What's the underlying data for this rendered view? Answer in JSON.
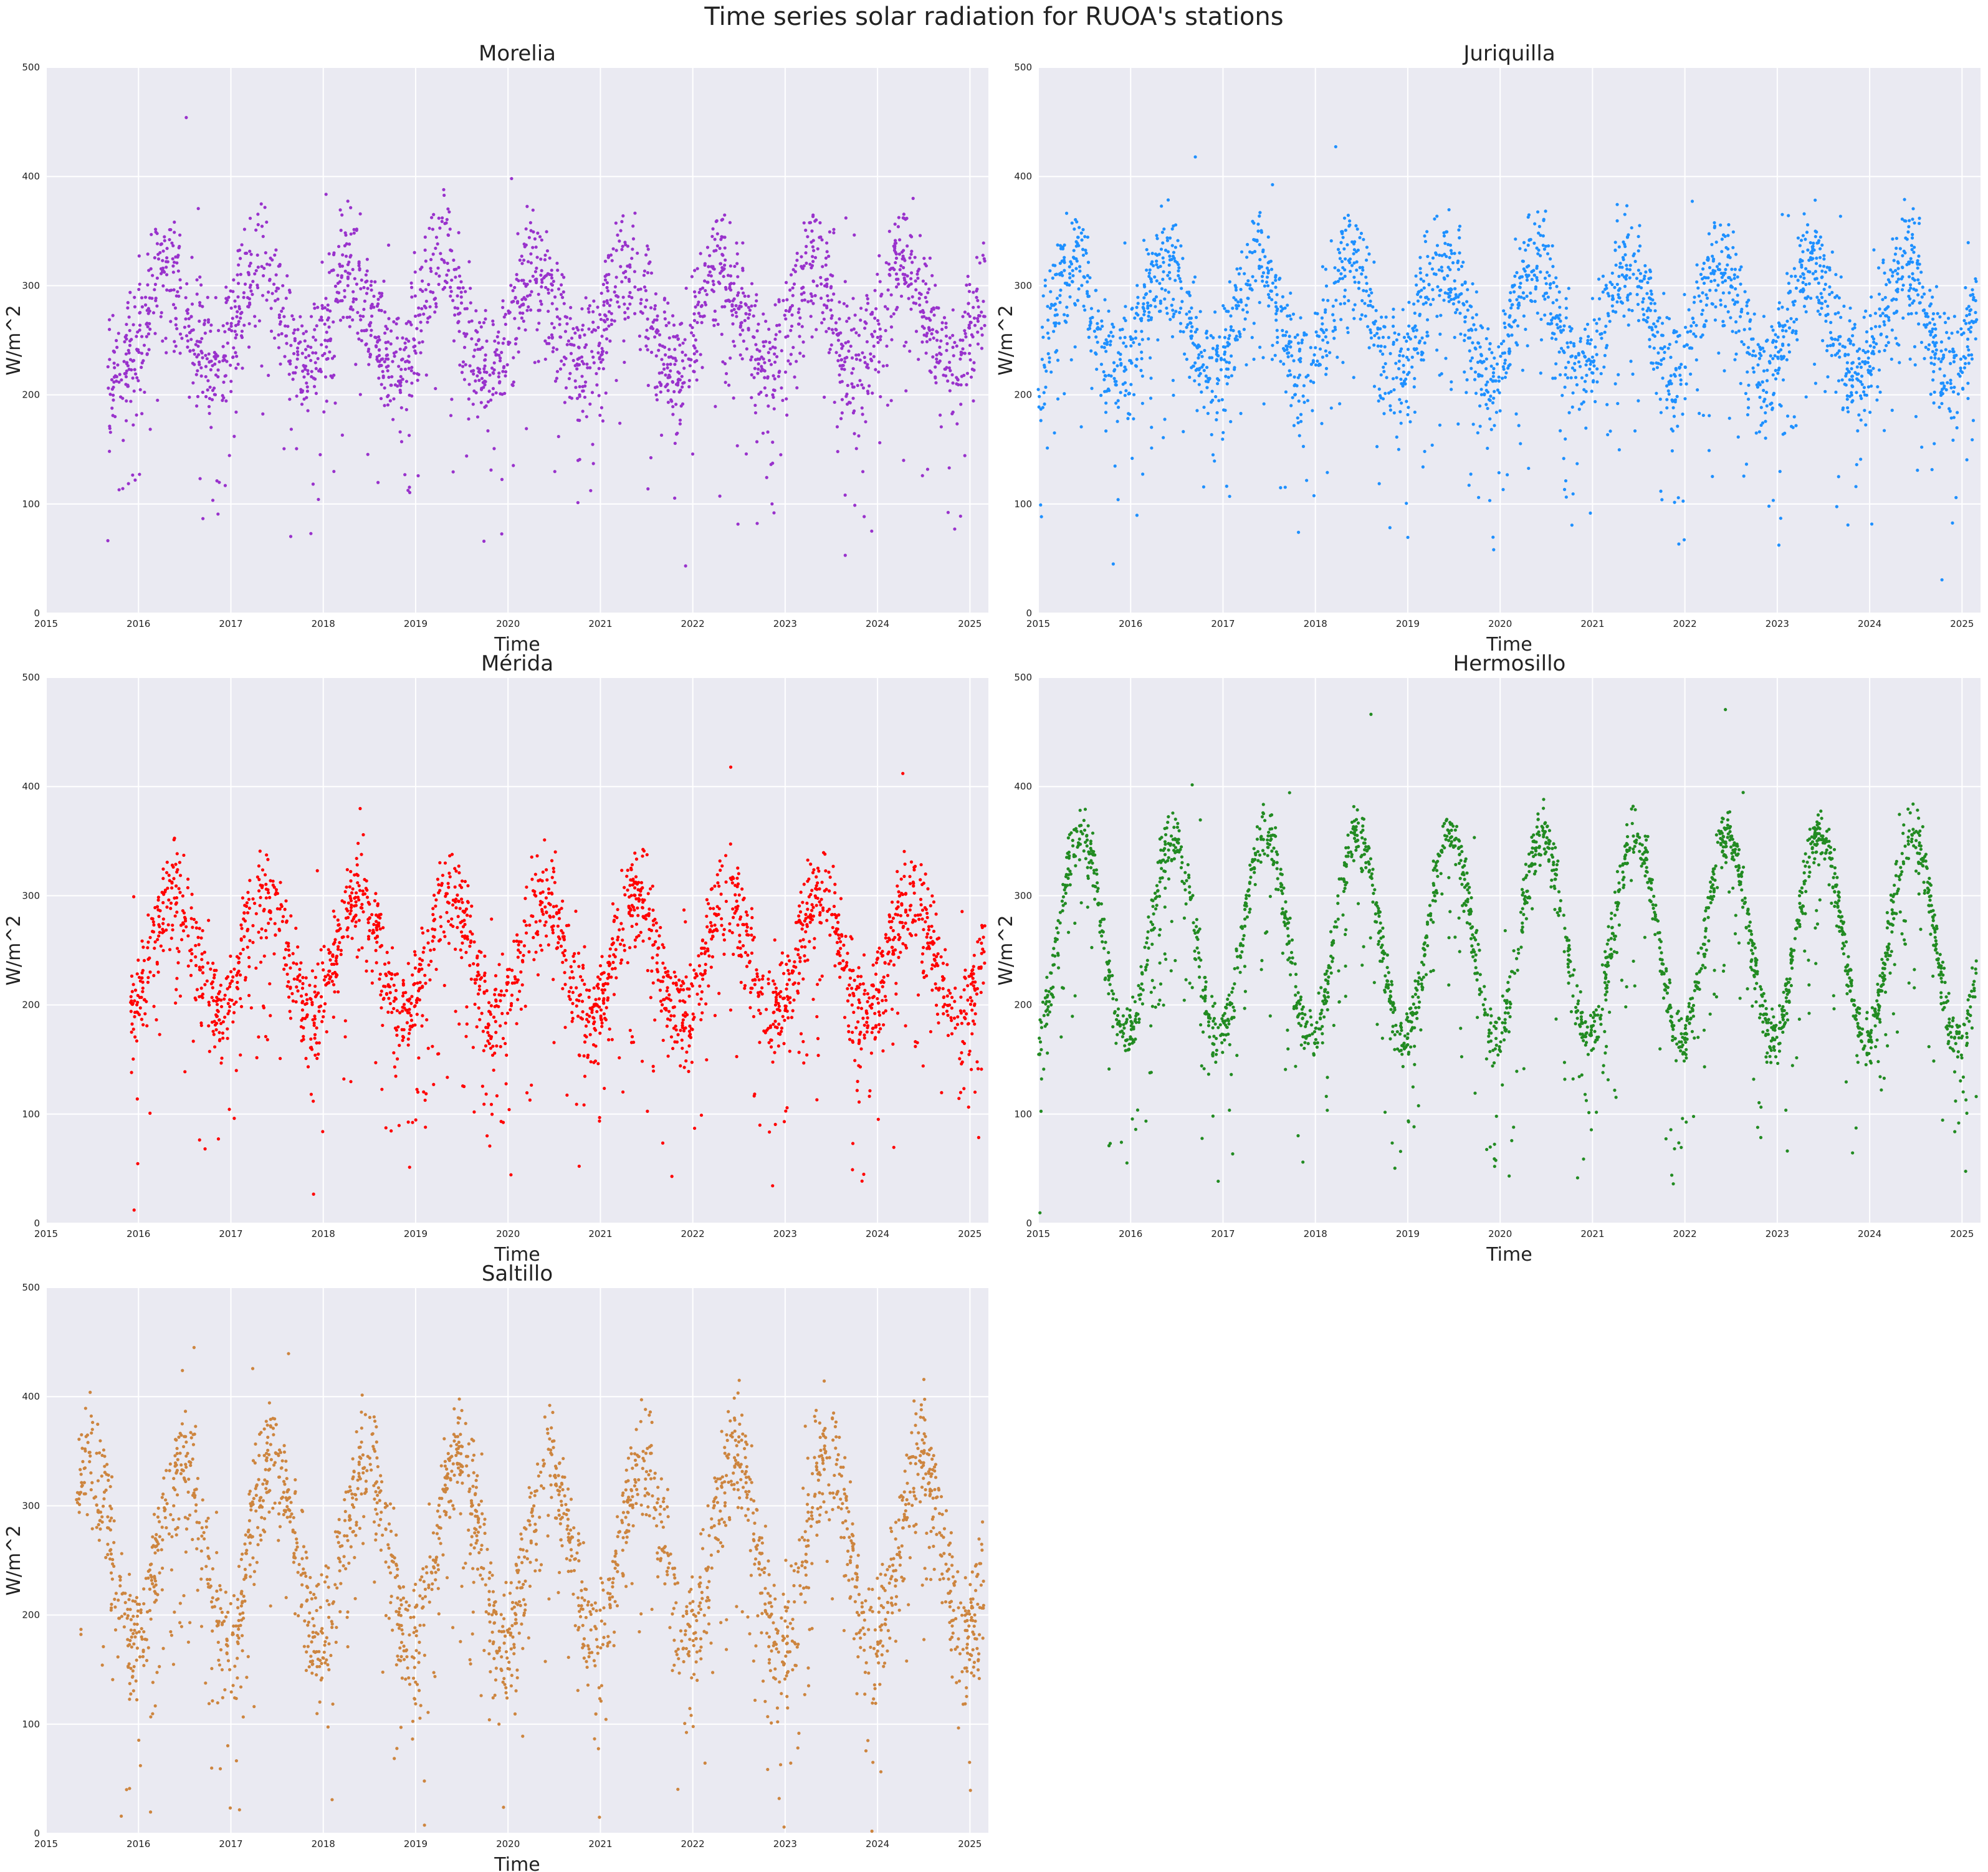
{
  "figure": {
    "title": "Time series solar radiation for RUOA's stations"
  },
  "chart_data": [
    {
      "type": "scatter",
      "title": "Morelia",
      "xlabel": "Time",
      "ylabel": "W/m^2",
      "color": "#9932cc",
      "xlim": [
        "2015-01-01",
        "2025-03-15"
      ],
      "ylim": [
        0,
        500
      ],
      "x_ticks": [
        "2015",
        "2016",
        "2017",
        "2018",
        "2019",
        "2020",
        "2021",
        "2022",
        "2023",
        "2024",
        "2025"
      ],
      "y_ticks": [
        0,
        100,
        200,
        300,
        400,
        500
      ],
      "grid": true,
      "data_start": "2015-09-01",
      "data_end": "2025-03-01",
      "seasonal_pattern": {
        "winter_level": 225,
        "summer_peak": 320,
        "peak_month": 3.5,
        "scatter": 55
      }
    },
    {
      "type": "scatter",
      "title": "Juriquilla",
      "xlabel": "Time",
      "ylabel": "W/m^2",
      "color": "#1e90ff",
      "xlim": [
        "2015-01-01",
        "2025-03-15"
      ],
      "ylim": [
        0,
        500
      ],
      "x_ticks": [
        "2015",
        "2016",
        "2017",
        "2018",
        "2019",
        "2020",
        "2021",
        "2022",
        "2023",
        "2024",
        "2025"
      ],
      "y_ticks": [
        0,
        100,
        200,
        300,
        400,
        500
      ],
      "grid": true,
      "data_start": "2015-01-01",
      "data_end": "2025-02-28",
      "seasonal_pattern": {
        "winter_level": 220,
        "summer_peak": 320,
        "peak_month": 4.5,
        "scatter": 50
      }
    },
    {
      "type": "scatter",
      "title": "Mérida",
      "xlabel": "Time",
      "ylabel": "W/m^2",
      "color": "#ff0000",
      "xlim": [
        "2015-01-01",
        "2025-03-15"
      ],
      "ylim": [
        0,
        500
      ],
      "x_ticks": [
        "2015",
        "2016",
        "2017",
        "2018",
        "2019",
        "2020",
        "2021",
        "2022",
        "2023",
        "2024",
        "2025"
      ],
      "y_ticks": [
        0,
        100,
        200,
        300,
        400,
        500
      ],
      "grid": true,
      "data_start": "2015-12-01",
      "data_end": "2025-03-01",
      "seasonal_pattern": {
        "winter_level": 190,
        "summer_peak": 300,
        "peak_month": 4.5,
        "scatter": 45
      }
    },
    {
      "type": "scatter",
      "title": "Hermosillo",
      "xlabel": "Time",
      "ylabel": "W/m^2",
      "color": "#228b22",
      "xlim": [
        "2015-01-01",
        "2025-03-15"
      ],
      "ylim": [
        0,
        500
      ],
      "x_ticks": [
        "2015",
        "2016",
        "2017",
        "2018",
        "2019",
        "2020",
        "2021",
        "2022",
        "2023",
        "2024",
        "2025"
      ],
      "y_ticks": [
        0,
        100,
        200,
        300,
        400,
        500
      ],
      "grid": true,
      "data_start": "2015-01-01",
      "data_end": "2025-03-01",
      "seasonal_pattern": {
        "winter_level": 170,
        "summer_peak": 355,
        "peak_month": 5.5,
        "scatter": 25
      }
    },
    {
      "type": "scatter",
      "title": "Saltillo",
      "xlabel": "Time",
      "ylabel": "W/m^2",
      "color": "#cd853f",
      "xlim": [
        "2015-01-01",
        "2025-03-15"
      ],
      "ylim": [
        0,
        500
      ],
      "x_ticks": [
        "2015",
        "2016",
        "2017",
        "2018",
        "2019",
        "2020",
        "2021",
        "2022",
        "2023",
        "2024",
        "2025"
      ],
      "y_ticks": [
        0,
        100,
        200,
        300,
        400,
        500
      ],
      "grid": true,
      "data_start": "2015-05-01",
      "data_end": "2025-03-01",
      "seasonal_pattern": {
        "winter_level": 175,
        "summer_peak": 345,
        "peak_month": 5.5,
        "scatter": 55
      }
    }
  ]
}
